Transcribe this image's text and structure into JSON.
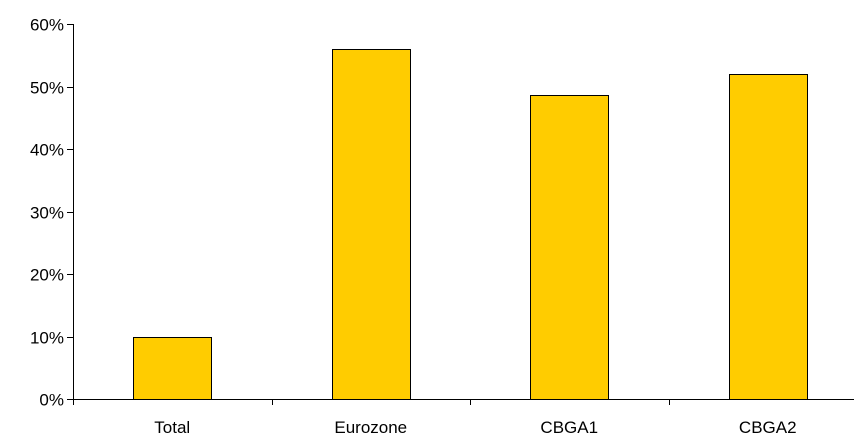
{
  "chart_data": {
    "type": "bar",
    "title": "",
    "xlabel": "",
    "ylabel": "",
    "categories": [
      "Total",
      "Eurozone",
      "CBGA1",
      "CBGA2"
    ],
    "values": [
      10,
      56,
      48.7,
      52
    ],
    "value_format": "percent",
    "ylim": [
      0,
      60
    ],
    "yticks": [
      0,
      10,
      20,
      30,
      40,
      50,
      60
    ],
    "ytick_labels": [
      "0%",
      "10%",
      "20%",
      "30%",
      "40%",
      "50%",
      "60%"
    ],
    "grid": false,
    "legend": "none",
    "colors": {
      "bar_fill": "#FFCC00",
      "bar_stroke": "#000000",
      "axis": "#000000"
    }
  }
}
